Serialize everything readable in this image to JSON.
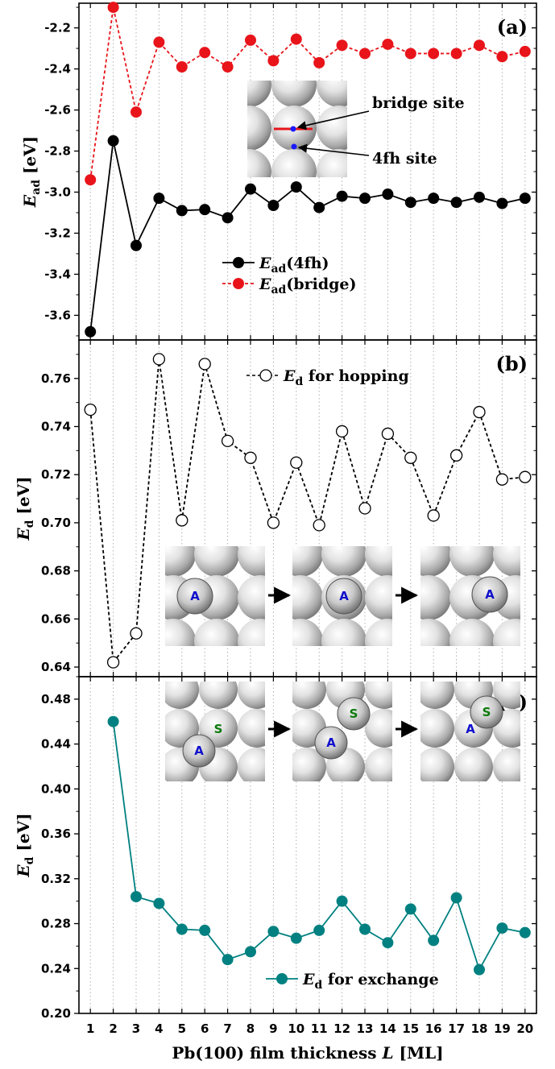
{
  "chart_data": [
    {
      "type": "line",
      "panel_label": "(a)",
      "ylabel": "E_ad [eV]",
      "ylabel_main": "E",
      "ylabel_sub": "ad",
      "ylabel_unit": " [eV]",
      "ylim": [
        -3.72,
        -2.08
      ],
      "yticks": [
        -3.6,
        -3.4,
        -3.2,
        -3.0,
        -2.8,
        -2.6,
        -2.4,
        -2.2
      ],
      "ytick_labels": [
        "-3.6",
        "-3.4",
        "-3.2",
        "-3.0",
        "-2.8",
        "-2.6",
        "-2.4",
        "-2.2"
      ],
      "x": [
        1,
        2,
        3,
        4,
        5,
        6,
        7,
        8,
        9,
        10,
        11,
        12,
        13,
        14,
        15,
        16,
        17,
        18,
        19,
        20
      ],
      "series": [
        {
          "name": "E_ad(4fh)",
          "legend_main": "E",
          "legend_sub": "ad",
          "legend_suffix": "(4fh)",
          "color": "#000000",
          "line_style": "solid",
          "marker": "filled-circle",
          "values": [
            -3.68,
            -2.75,
            -3.26,
            -3.03,
            -3.09,
            -3.085,
            -3.125,
            -2.985,
            -3.065,
            -2.975,
            -3.075,
            -3.02,
            -3.03,
            -3.01,
            -3.05,
            -3.03,
            -3.05,
            -3.025,
            -3.055,
            -3.03
          ]
        },
        {
          "name": "E_ad(bridge)",
          "legend_main": "E",
          "legend_sub": "ad",
          "legend_suffix": "(bridge)",
          "color": "#e8141a",
          "line_style": "dashed",
          "marker": "filled-circle",
          "values": [
            -2.94,
            -2.1,
            -2.61,
            -2.27,
            -2.39,
            -2.32,
            -2.39,
            -2.26,
            -2.36,
            -2.255,
            -2.37,
            -2.285,
            -2.325,
            -2.28,
            -2.325,
            -2.325,
            -2.325,
            -2.285,
            -2.34,
            -2.315
          ]
        }
      ],
      "annotations": [
        "bridge site",
        "4fh site"
      ]
    },
    {
      "type": "line",
      "panel_label": "(b)",
      "ylabel": "E_d [eV]",
      "ylabel_main": "E",
      "ylabel_sub": "d",
      "ylabel_unit": " [eV]",
      "ylim": [
        0.636,
        0.776
      ],
      "yticks": [
        0.64,
        0.66,
        0.68,
        0.7,
        0.72,
        0.74,
        0.76
      ],
      "ytick_labels": [
        "0.64",
        "0.66",
        "0.68",
        "0.70",
        "0.72",
        "0.74",
        "0.76"
      ],
      "x": [
        1,
        2,
        3,
        4,
        5,
        6,
        7,
        8,
        9,
        10,
        11,
        12,
        13,
        14,
        15,
        16,
        17,
        18,
        19,
        20
      ],
      "series": [
        {
          "name": "E_d for hopping",
          "legend_main": "E",
          "legend_sub": "d",
          "legend_suffix": " for hopping",
          "color": "#000000",
          "line_style": "dashed",
          "marker": "open-circle",
          "values": [
            0.747,
            0.642,
            0.654,
            0.768,
            0.701,
            0.766,
            0.734,
            0.727,
            0.7,
            0.725,
            0.699,
            0.738,
            0.706,
            0.737,
            0.727,
            0.703,
            0.728,
            0.746,
            0.718,
            0.719
          ]
        }
      ],
      "inset_labels": [
        "A",
        "A",
        "A"
      ]
    },
    {
      "type": "line",
      "panel_label": "(c)",
      "ylabel": "E_d [eV]",
      "ylabel_main": "E",
      "ylabel_sub": "d",
      "ylabel_unit": " [eV]",
      "ylim": [
        0.2,
        0.5
      ],
      "yticks": [
        0.2,
        0.24,
        0.28,
        0.32,
        0.36,
        0.4,
        0.44,
        0.48
      ],
      "ytick_labels": [
        "0.20",
        "0.24",
        "0.28",
        "0.32",
        "0.36",
        "0.40",
        "0.44",
        "0.48"
      ],
      "x": [
        2,
        3,
        4,
        5,
        6,
        7,
        8,
        9,
        10,
        11,
        12,
        13,
        14,
        15,
        16,
        17,
        18,
        19,
        20
      ],
      "series": [
        {
          "name": "E_d for exchange",
          "legend_main": "E",
          "legend_sub": "d",
          "legend_suffix": " for exchange",
          "color": "#008080",
          "line_style": "solid",
          "marker": "filled-circle",
          "values": [
            0.46,
            0.304,
            0.298,
            0.275,
            0.274,
            0.248,
            0.255,
            0.273,
            0.267,
            0.274,
            0.3,
            0.275,
            0.263,
            0.293,
            0.265,
            0.303,
            0.239,
            0.276,
            0.272
          ]
        }
      ],
      "inset_labels": [
        "A",
        "S",
        "A",
        "S",
        "A",
        "S"
      ]
    }
  ],
  "x_axis": {
    "xlim": [
      0.5,
      20.5
    ],
    "ticks": [
      1,
      2,
      3,
      4,
      5,
      6,
      7,
      8,
      9,
      10,
      11,
      12,
      13,
      14,
      15,
      16,
      17,
      18,
      19,
      20
    ],
    "tick_labels": [
      "1",
      "2",
      "3",
      "4",
      "5",
      "6",
      "7",
      "8",
      "9",
      "10",
      "11",
      "12",
      "13",
      "14",
      "15",
      "16",
      "17",
      "18",
      "19",
      "20"
    ],
    "xlabel_prefix": "Pb(100) film thickness ",
    "xlabel_var": "L",
    "xlabel_suffix": " [ML]",
    "grid": "vertical-dotted"
  },
  "colors": {
    "atom_blue": "#1010cc",
    "atom_green": "#0a7a0a",
    "bridge_line": "#e8141a",
    "site_dot": "#1a1aff",
    "grid": "#b0b0b0"
  }
}
